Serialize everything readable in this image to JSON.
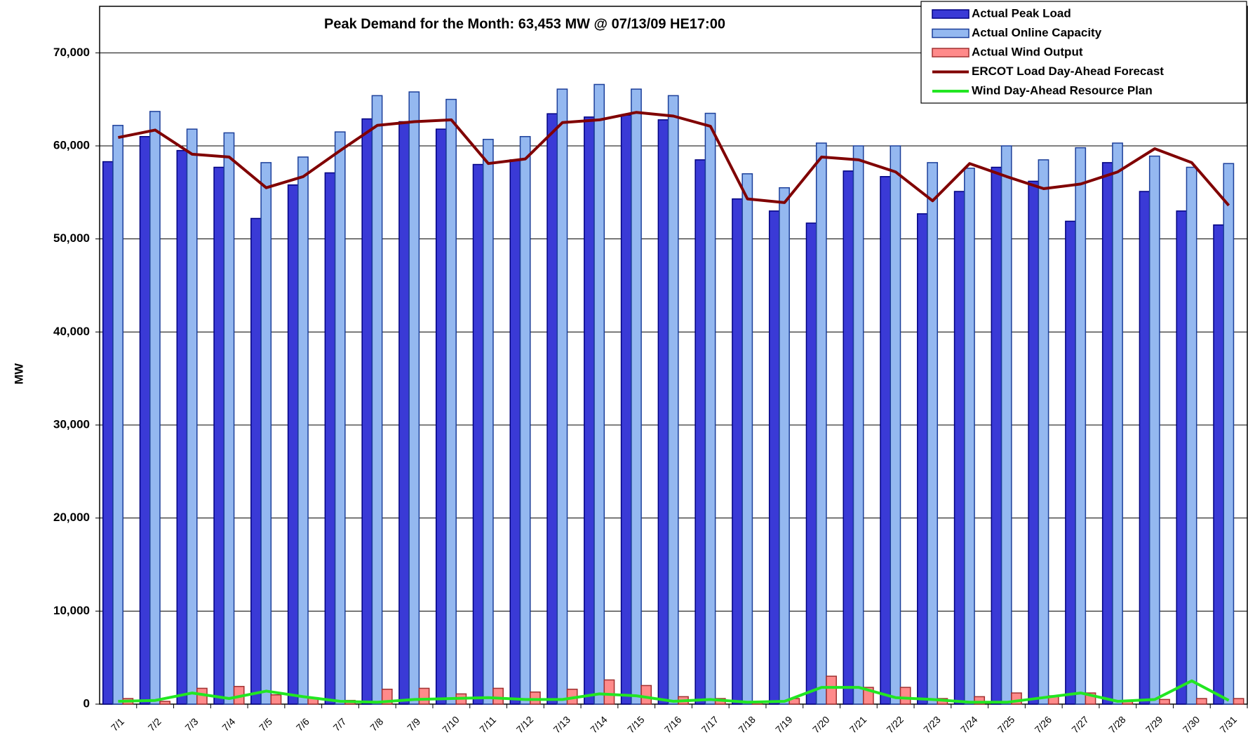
{
  "chart_data": {
    "type": "bar",
    "title": "Peak Demand for the Month:  63,453 MW @ 07/13/09 HE17:00",
    "y_label": "MW",
    "categories": [
      "7/1",
      "7/2",
      "7/3",
      "7/4",
      "7/5",
      "7/6",
      "7/7",
      "7/8",
      "7/9",
      "7/10",
      "7/11",
      "7/12",
      "7/13",
      "7/14",
      "7/15",
      "7/16",
      "7/17",
      "7/18",
      "7/19",
      "7/20",
      "7/21",
      "7/22",
      "7/23",
      "7/24",
      "7/25",
      "7/26",
      "7/27",
      "7/28",
      "7/29",
      "7/30",
      "7/31"
    ],
    "ylim": [
      0,
      75000
    ],
    "yticks": [
      0,
      {
        "value": 10000,
        "label": "10,000"
      },
      {
        "value": 20000,
        "label": "20,000"
      },
      {
        "value": 30000,
        "label": "30,000"
      },
      {
        "value": 40000,
        "label": "40,000"
      },
      {
        "value": 50000,
        "label": "50,000"
      },
      {
        "value": 60000,
        "label": "60,000"
      },
      {
        "value": 70000,
        "label": "70,000"
      }
    ],
    "grid": true,
    "legend": "top-right",
    "series": [
      {
        "name": "Actual Peak Load",
        "type": "bar",
        "color": "#3a3ad6",
        "stroke": "#000080",
        "values": [
          58300,
          61000,
          59500,
          57700,
          52200,
          55800,
          57100,
          62900,
          62600,
          61800,
          58000,
          58500,
          63453,
          63100,
          63300,
          62800,
          58500,
          54300,
          53000,
          51700,
          57300,
          56700,
          52700,
          55100,
          57700,
          56200,
          51900,
          58200,
          55100,
          53000,
          51500
        ]
      },
      {
        "name": "Actual Online Capacity",
        "type": "bar",
        "color": "#94b8f0",
        "stroke": "#1c3f9a",
        "values": [
          62200,
          63700,
          61800,
          61400,
          58200,
          58800,
          61500,
          65400,
          65800,
          65000,
          60700,
          61000,
          66100,
          66600,
          66100,
          65400,
          63500,
          57000,
          55500,
          60300,
          60000,
          60000,
          58200,
          57600,
          60000,
          58500,
          59800,
          60300,
          58900,
          57700,
          58100
        ]
      },
      {
        "name": "Actual Wind Output",
        "type": "bar",
        "color": "#ff8a8a",
        "stroke": "#a03030",
        "values": [
          600,
          300,
          1700,
          1900,
          1000,
          700,
          400,
          1600,
          1700,
          1100,
          1700,
          1300,
          1600,
          2600,
          2000,
          800,
          600,
          300,
          600,
          3000,
          1800,
          1800,
          600,
          800,
          1200,
          900,
          1200,
          300,
          500,
          600,
          600
        ]
      },
      {
        "name": "ERCOT Load Day-Ahead Forecast",
        "type": "line",
        "color": "#800000",
        "values": [
          60900,
          61700,
          59100,
          58800,
          55500,
          56700,
          59500,
          62200,
          62600,
          62800,
          58100,
          58600,
          62500,
          62800,
          63600,
          63200,
          62100,
          54300,
          53900,
          58800,
          58500,
          57200,
          54100,
          58100,
          56700,
          55400,
          55900,
          57200,
          59700,
          58200,
          53600
        ]
      },
      {
        "name": "Wind Day-Ahead Resource Plan",
        "type": "line",
        "color": "#22e622",
        "values": [
          300,
          400,
          1200,
          600,
          1400,
          800,
          300,
          200,
          500,
          600,
          700,
          500,
          500,
          1100,
          900,
          300,
          500,
          200,
          300,
          1800,
          1800,
          700,
          500,
          200,
          200,
          700,
          1200,
          300,
          500,
          2500,
          400
        ]
      }
    ]
  }
}
